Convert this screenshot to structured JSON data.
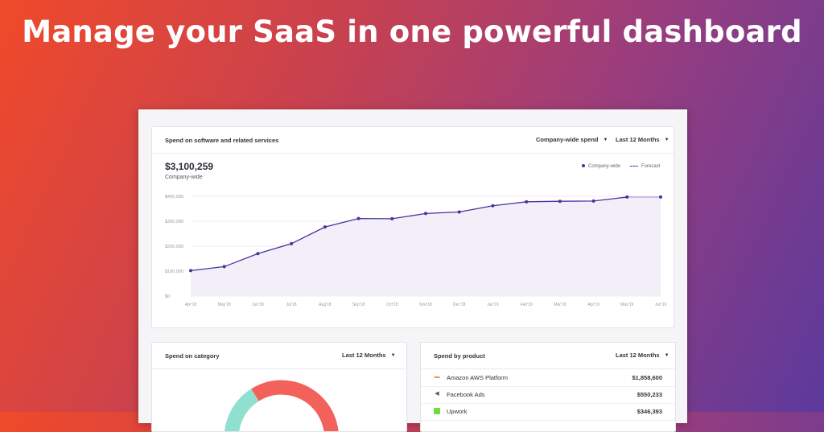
{
  "headline": "Manage your SaaS in one powerful dashboard",
  "spend_card": {
    "title": "Spend on software and related services",
    "filter_scope": "Company-wide spend",
    "filter_period": "Last 12 Months",
    "total": "$3,100,259",
    "total_label": "Company-wide",
    "legend_actual": "Company-wide",
    "legend_forecast": "Forecast"
  },
  "category_card": {
    "title": "Spend on category",
    "filter_period": "Last 12 Months"
  },
  "product_card": {
    "title": "Spend by product",
    "filter_period": "Last 12 Months",
    "rows": [
      {
        "name": "Amazon AWS Platform",
        "value": "$1,858,600",
        "icon": "aws-icon"
      },
      {
        "name": "Facebook Ads",
        "value": "$550,233",
        "icon": "megaphone-icon"
      },
      {
        "name": "Upwork",
        "value": "$346,393",
        "icon": "upwork-icon"
      }
    ]
  },
  "colors": {
    "line": "#4d2f9e",
    "forecast_line": "#b7a9dc",
    "area_fill": "#f2eff8",
    "donut_red": "#f2615a",
    "donut_teal": "#8fe0cf"
  },
  "chart_data": {
    "type": "line",
    "x": [
      "Apr'18",
      "May'18",
      "Jun'18",
      "Jul'18",
      "Aug'18",
      "Sep'18",
      "Oct'18",
      "Nov'18",
      "Dec'18",
      "Jan'19",
      "Feb'19",
      "Mar'19",
      "Apr'19",
      "May'19",
      "Jun'19"
    ],
    "series": [
      {
        "name": "Company-wide",
        "values": [
          102000,
          118000,
          170000,
          210000,
          277000,
          311000,
          310000,
          331000,
          337000,
          362000,
          378000,
          380000,
          381000,
          397000,
          null
        ]
      },
      {
        "name": "Forecast",
        "values": [
          null,
          null,
          null,
          null,
          null,
          null,
          null,
          null,
          null,
          null,
          null,
          null,
          null,
          397000,
          397000
        ]
      }
    ],
    "yticks": [
      "$0",
      "$100,000",
      "$200,000",
      "$300,000",
      "$400,000"
    ],
    "ylim": [
      0,
      400000
    ]
  }
}
